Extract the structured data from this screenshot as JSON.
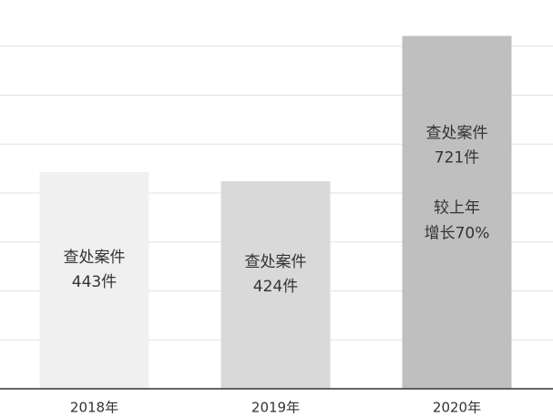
{
  "chart_data": {
    "type": "bar",
    "categories": [
      "2018年",
      "2019年",
      "2020年"
    ],
    "values": [
      443,
      424,
      721
    ],
    "value_labels": [
      "443件",
      "424件",
      "721件"
    ],
    "captions": [
      "查处案件",
      "查处案件",
      "查处案件"
    ],
    "annotation": [
      "较上年",
      "增长70%"
    ],
    "colors": [
      "#f0f0f0",
      "#d9d9d9",
      "#bfbfbf"
    ],
    "ylim": [
      0,
      800
    ],
    "yticks": [
      0,
      100,
      200,
      300,
      400,
      500,
      600,
      700
    ],
    "grid": true
  }
}
